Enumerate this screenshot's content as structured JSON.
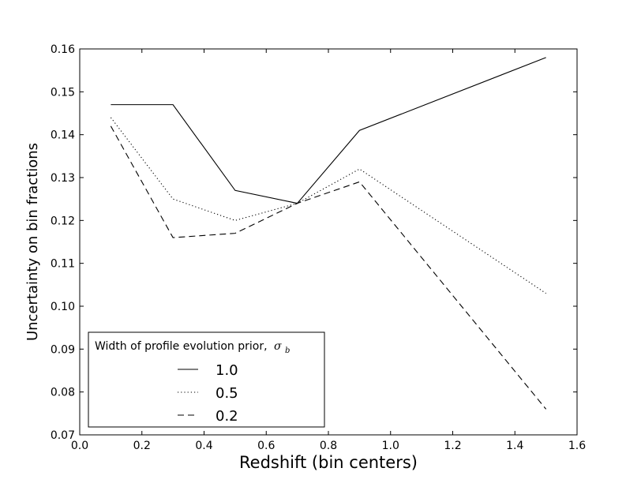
{
  "chart_data": {
    "type": "line",
    "xlabel": "Redshift (bin centers)",
    "ylabel": "Uncertainty on bin fractions",
    "xlim": [
      0.0,
      1.6
    ],
    "ylim": [
      0.07,
      0.16
    ],
    "x_ticks": [
      0.0,
      0.2,
      0.4,
      0.6,
      0.8,
      1.0,
      1.2,
      1.4,
      1.6
    ],
    "x_tick_labels": [
      "0.0",
      "0.2",
      "0.4",
      "0.6",
      "0.8",
      "1.0",
      "1.2",
      "1.4",
      "1.6"
    ],
    "y_ticks": [
      0.07,
      0.08,
      0.09,
      0.1,
      0.11,
      0.12,
      0.13,
      0.14,
      0.15,
      0.16
    ],
    "y_tick_labels": [
      "0.07",
      "0.08",
      "0.09",
      "0.10",
      "0.11",
      "0.12",
      "0.13",
      "0.14",
      "0.15",
      "0.16"
    ],
    "x": [
      0.1,
      0.3,
      0.5,
      0.7,
      0.9,
      1.5
    ],
    "series": [
      {
        "name": "1.0",
        "style": "solid",
        "values": [
          0.147,
          0.147,
          0.127,
          0.124,
          0.141,
          0.158
        ]
      },
      {
        "name": "0.5",
        "style": "dotted",
        "values": [
          0.144,
          0.125,
          0.12,
          0.124,
          0.132,
          0.103
        ]
      },
      {
        "name": "0.2",
        "style": "dashed",
        "values": [
          0.142,
          0.116,
          0.117,
          0.124,
          0.129,
          0.076
        ]
      }
    ],
    "legend": {
      "title_prefix": "Width of profile evolution prior,",
      "title_symbol": "σ",
      "title_subscript": "b",
      "placement": "lower-left"
    },
    "grid": false
  }
}
